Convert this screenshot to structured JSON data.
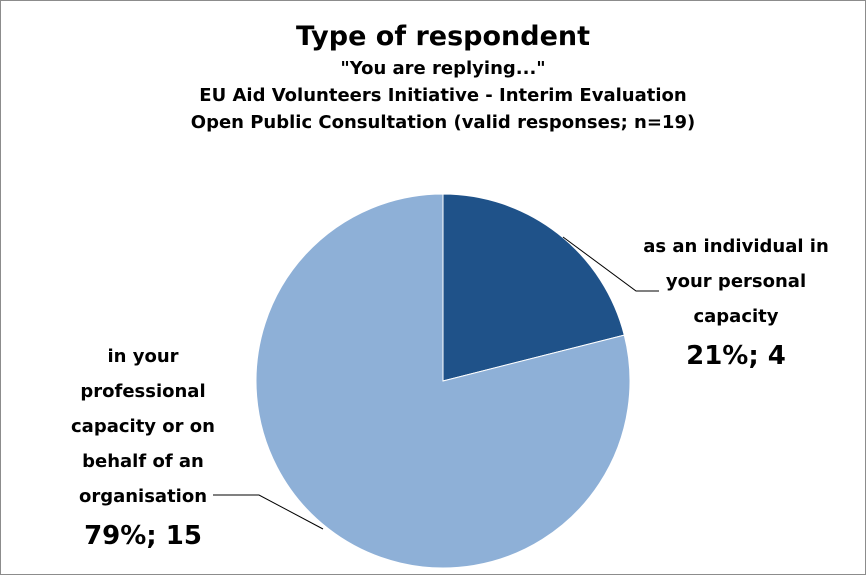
{
  "chart_data": {
    "type": "pie",
    "title": "Type of respondent",
    "subtitle": [
      "\"You are replying...\"",
      "EU Aid Volunteers Initiative - Interim Evaluation",
      "Open Public Consultation (valid responses; n=19)"
    ],
    "slices": [
      {
        "label": "as an individual in your personal capacity",
        "value": 4,
        "percent": 21,
        "data_label": "21%; 4",
        "color": "#1f5289"
      },
      {
        "label": "in your professional capacity or on behalf of an organisation",
        "value": 15,
        "percent": 79,
        "data_label": "79%; 15",
        "color": "#8eb0d7"
      }
    ],
    "legend": "none"
  }
}
